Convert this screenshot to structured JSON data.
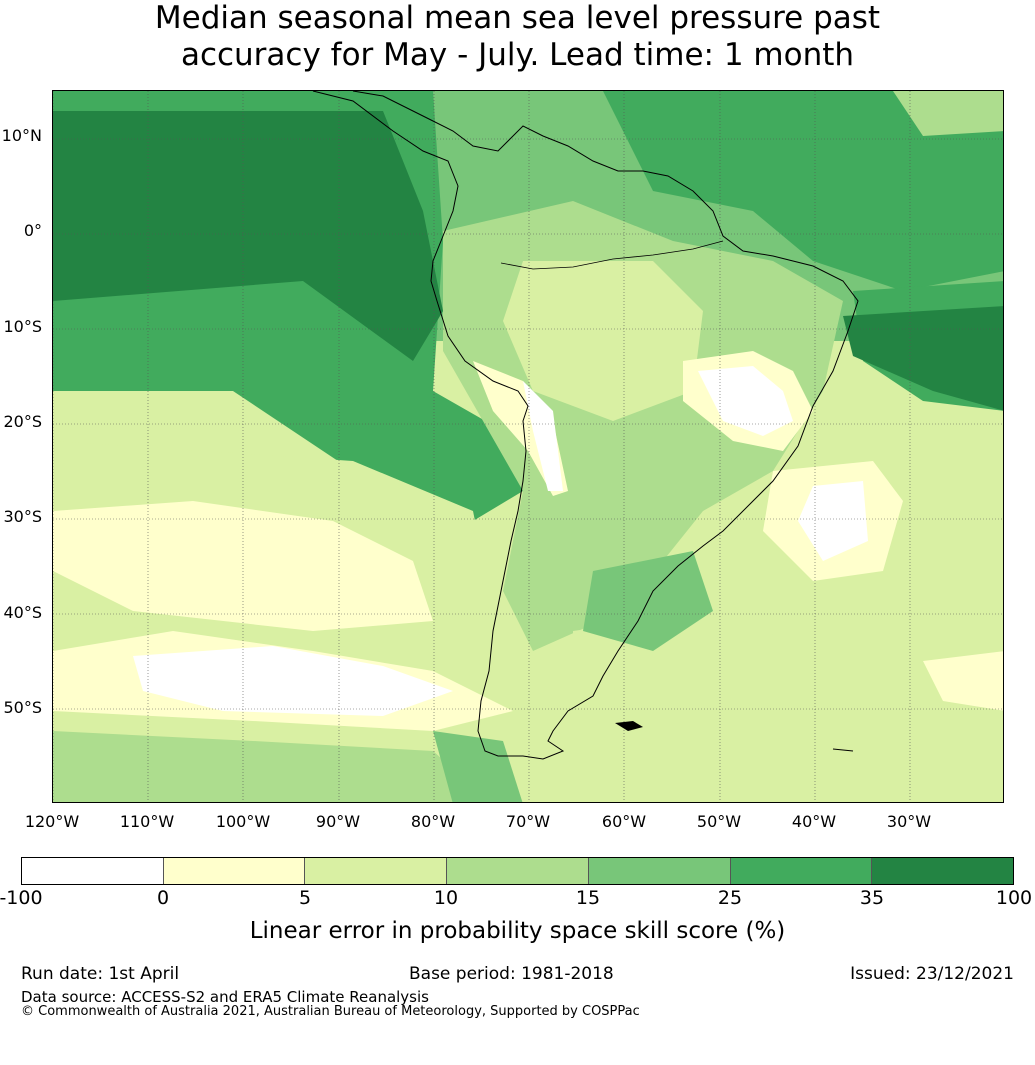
{
  "title": {
    "line1": "Median seasonal mean sea level pressure past",
    "line2": "accuracy for May - July. Lead time: 1 month"
  },
  "map": {
    "lat_labels": [
      "10°N",
      "0°",
      "10°S",
      "20°S",
      "30°S",
      "40°S",
      "50°S"
    ],
    "lon_labels": [
      "120°W",
      "110°W",
      "100°W",
      "90°W",
      "80°W",
      "70°W",
      "60°W",
      "50°W",
      "40°W",
      "30°W"
    ],
    "projection": "equirectangular",
    "lon_range": [
      -120,
      -20
    ],
    "lat_range": [
      -60,
      15
    ],
    "gridlines": true,
    "coastline_color": "#000000"
  },
  "colorbar": {
    "ticks": [
      "-100",
      "0",
      "5",
      "10",
      "15",
      "25",
      "35",
      "100"
    ],
    "colors": [
      "#ffffff",
      "#ffffcc",
      "#d9f0a3",
      "#addd8e",
      "#78c679",
      "#41ab5d",
      "#238443"
    ],
    "label": "Linear error in probability space skill score (%)"
  },
  "footer": {
    "run_date": "Run date: 1st April",
    "base_period": "Base period: 1981-2018",
    "issued": "Issued: 23/12/2021",
    "data_source": "Data source: ACCESS-S2 and ERA5 Climate Reanalysis",
    "copyright": "© Commonwealth of Australia 2021, Australian Bureau of Meteorology, Supported by COSPPac"
  }
}
